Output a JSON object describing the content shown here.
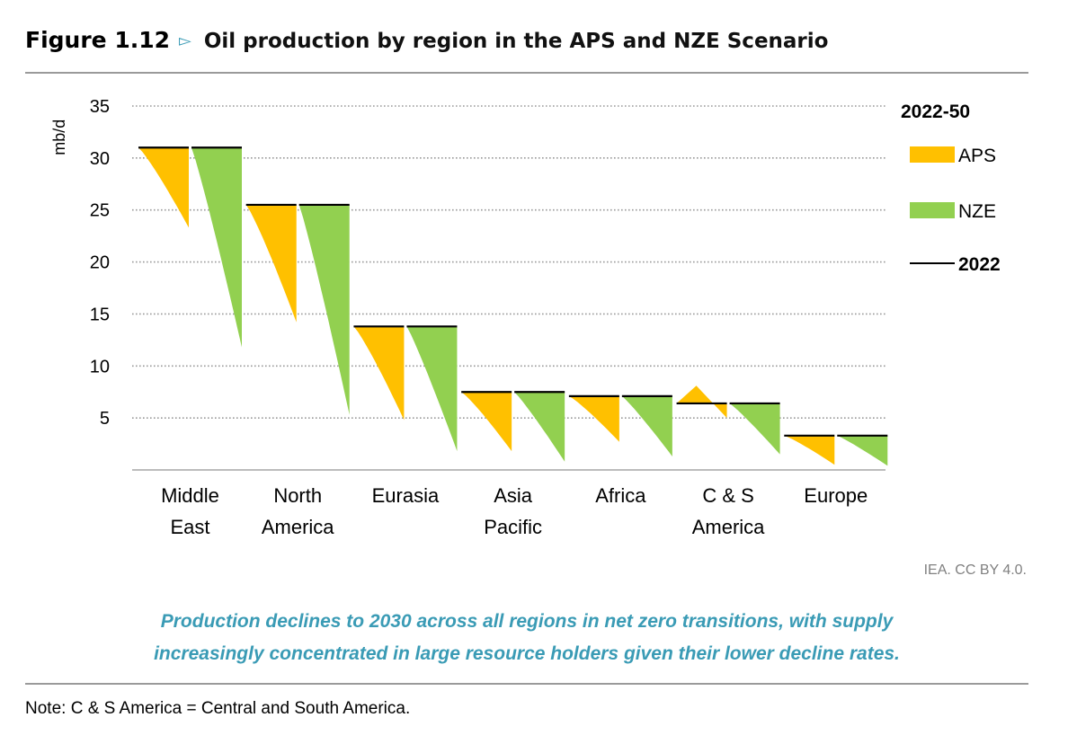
{
  "figure": {
    "number": "Figure 1.12",
    "title": "Oil production by region in the APS and NZE Scenario",
    "source": "IEA. CC BY 4.0.",
    "caption_line1": "Production declines to 2030 across all regions in net zero transitions, with supply",
    "caption_line2": "increasingly concentrated in large resource holders given their lower decline rates.",
    "note": "Note: C & S America = Central and South America.",
    "accent_color": "#3a9bb5"
  },
  "chart_data": {
    "type": "area",
    "ylabel": "mb/d",
    "ylim": [
      0,
      35
    ],
    "yticks": [
      5,
      10,
      15,
      20,
      25,
      30,
      35
    ],
    "legend": {
      "title": "2022-50",
      "position": "right",
      "items": [
        {
          "key": "aps",
          "label": "APS",
          "color": "#ffc000"
        },
        {
          "key": "nze",
          "label": "NZE",
          "color": "#92d050"
        },
        {
          "key": "base",
          "label": "2022",
          "color": "#000000"
        }
      ]
    },
    "categories": [
      {
        "label_lines": [
          "Middle",
          "East"
        ],
        "base_2022": 31.0,
        "aps_2050": 23.3,
        "nze_2050": 11.8
      },
      {
        "label_lines": [
          "North",
          "America"
        ],
        "base_2022": 25.5,
        "aps_2050": 14.2,
        "nze_2050": 5.3
      },
      {
        "label_lines": [
          "Eurasia"
        ],
        "base_2022": 13.8,
        "aps_2050": 4.8,
        "nze_2050": 1.8
      },
      {
        "label_lines": [
          "Asia",
          "Pacific"
        ],
        "base_2022": 7.5,
        "aps_2050": 1.8,
        "nze_2050": 0.8
      },
      {
        "label_lines": [
          "Africa"
        ],
        "base_2022": 7.1,
        "aps_2050": 2.7,
        "nze_2050": 1.3
      },
      {
        "label_lines": [
          "C & S",
          "America"
        ],
        "base_2022": 6.4,
        "aps_peak": 8.1,
        "aps_2050": 5.0,
        "nze_2050": 1.5
      },
      {
        "label_lines": [
          "Europe"
        ],
        "base_2022": 3.3,
        "aps_2050": 0.5,
        "nze_2050": 0.4
      }
    ]
  }
}
